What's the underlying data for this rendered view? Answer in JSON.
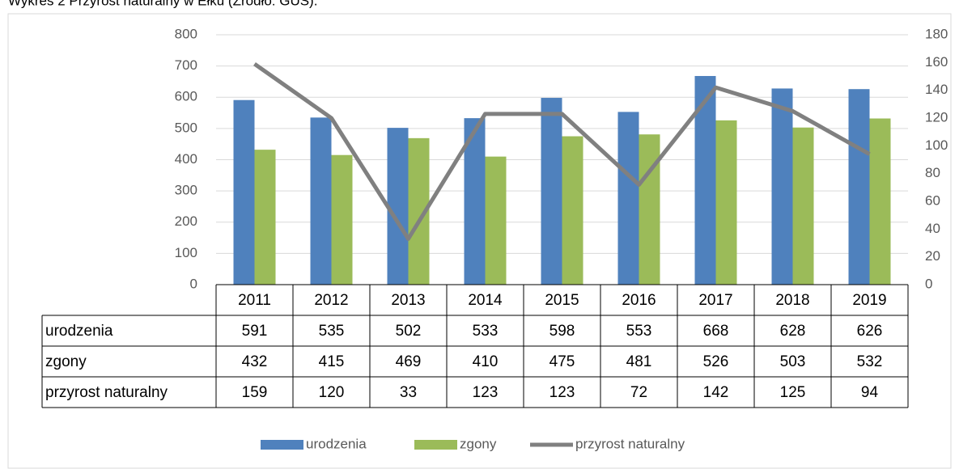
{
  "caption": "Wykres 2 Przyrost naturalny w Ełku (Źródło: GUS).",
  "chart_data": {
    "type": "bar-line-table",
    "categories": [
      "2011",
      "2012",
      "2013",
      "2014",
      "2015",
      "2016",
      "2017",
      "2018",
      "2019"
    ],
    "series": [
      {
        "name": "urodzenia",
        "color": "#4f81bd",
        "type": "bar",
        "values": [
          591,
          535,
          502,
          533,
          598,
          553,
          668,
          628,
          626
        ]
      },
      {
        "name": "zgony",
        "color": "#9bbb59",
        "type": "bar",
        "values": [
          432,
          415,
          469,
          410,
          475,
          481,
          526,
          503,
          532
        ]
      },
      {
        "name": "przyrost naturalny",
        "color": "#808080",
        "type": "line",
        "axis": "y2",
        "values": [
          159,
          120,
          33,
          123,
          123,
          72,
          142,
          125,
          94
        ]
      }
    ],
    "ylim": [
      0,
      800
    ],
    "yticks": [
      0,
      100,
      200,
      300,
      400,
      500,
      600,
      700,
      800
    ],
    "y2lim": [
      0,
      180
    ],
    "y2ticks": [
      0,
      20,
      40,
      60,
      80,
      100,
      120,
      140,
      160,
      180
    ],
    "grid": true
  }
}
